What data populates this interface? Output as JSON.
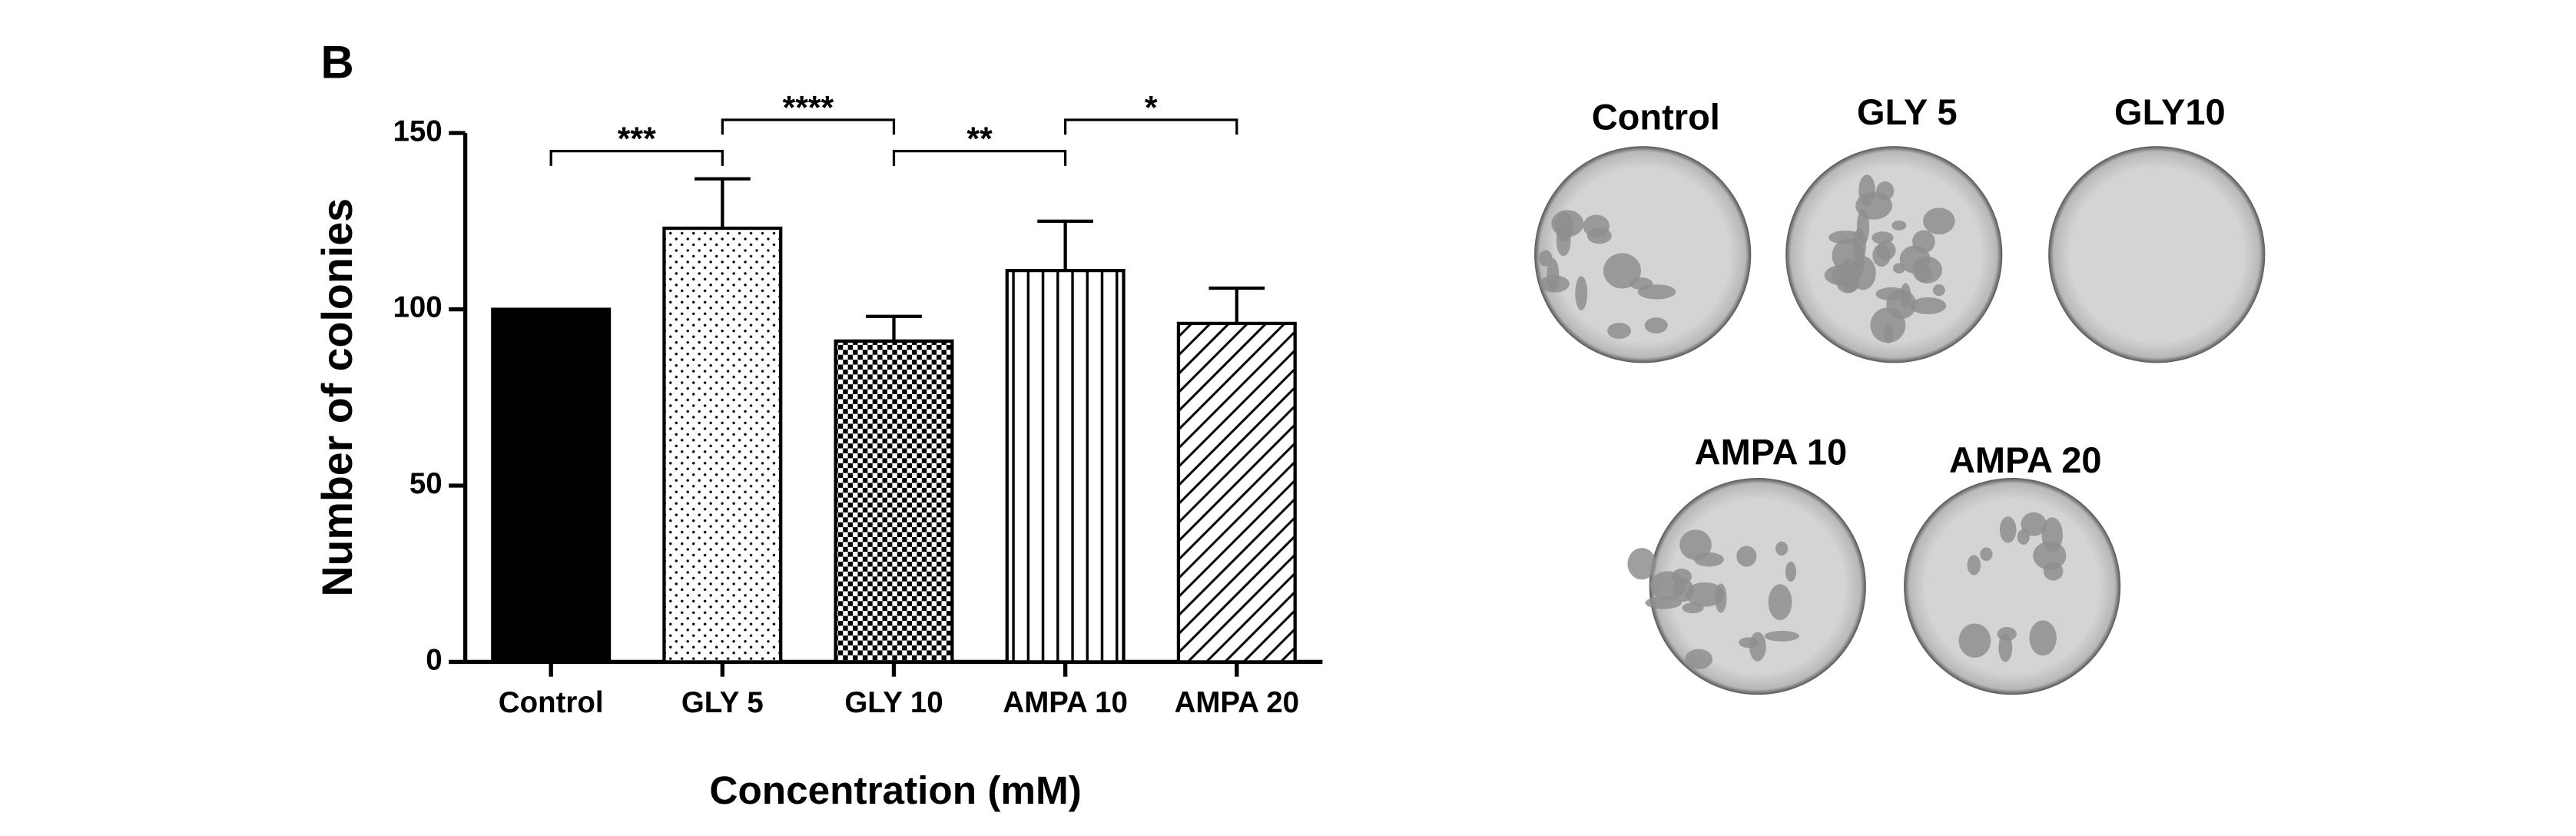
{
  "panel_label": "B",
  "chart_data": {
    "type": "bar",
    "y_label": "Number of colonies",
    "x_label": "Concentration (mM)",
    "categories": [
      "Control",
      "GLY 5",
      "GLY 10",
      "AMPA 10",
      "AMPA 20"
    ],
    "values": [
      100,
      123,
      91,
      111,
      96
    ],
    "errors": [
      null,
      14,
      7,
      14,
      10
    ],
    "patterns": [
      "solid",
      "dots",
      "checker",
      "vertical",
      "diagonal"
    ],
    "color": "#000000",
    "ylim": [
      0,
      150
    ],
    "yticks": [
      0,
      50,
      100,
      150
    ],
    "significance": [
      {
        "label": "***",
        "from": 0,
        "to": 1
      },
      {
        "label": "****",
        "from": 1,
        "to": 2
      },
      {
        "label": "**",
        "from": 2,
        "to": 3
      },
      {
        "label": "*",
        "from": 3,
        "to": 4
      }
    ]
  },
  "plates": [
    "Control",
    "GLY 5",
    "GLY10",
    "AMPA 10",
    "AMPA 20"
  ]
}
